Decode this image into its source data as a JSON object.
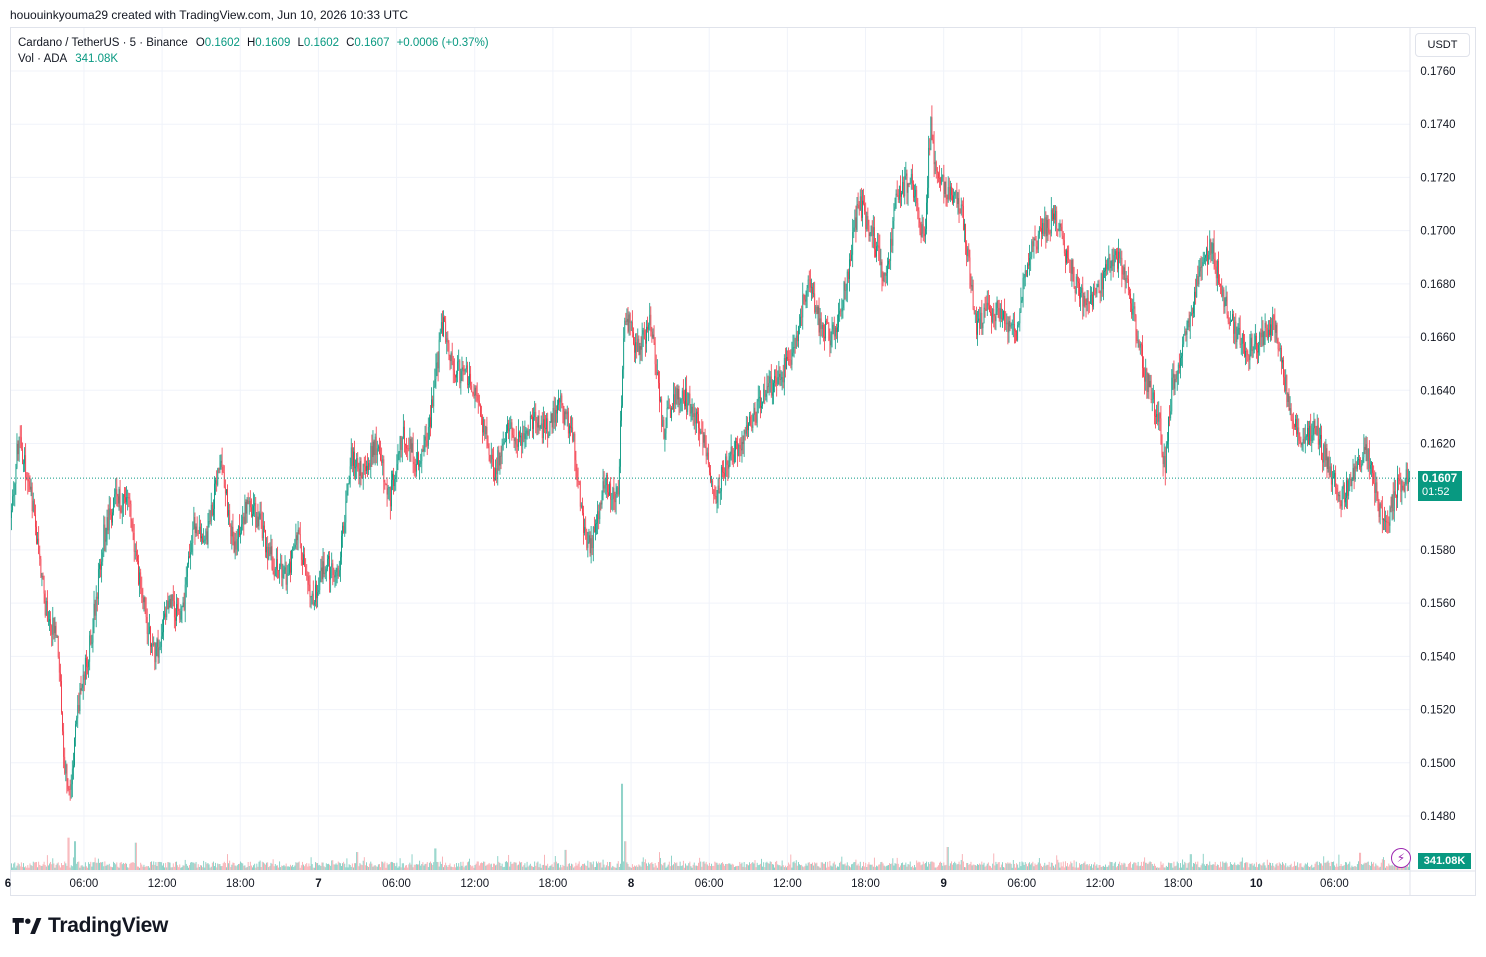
{
  "credit": "hououinkyouma29 created with TradingView.com, Jun 10, 2026 10:33 UTC",
  "legend": {
    "symbol": "Cardano / TetherUS · 5 · Binance",
    "open_label": "O",
    "open": "0.1602",
    "high_label": "H",
    "high": "0.1609",
    "low_label": "L",
    "low": "0.1602",
    "close_label": "C",
    "close": "0.1607",
    "change": "+0.0006 (+0.37%)",
    "vol_label": "Vol · ADA",
    "vol_value": "341.08K"
  },
  "currency": "USDT",
  "last_price_tag": {
    "price": "0.1607",
    "countdown": "01:52"
  },
  "volume_tag": "341.08K",
  "brand": {
    "name": "TradingView",
    "icon": "tradingview-logo-icon"
  },
  "colors": {
    "up": "#089981",
    "down": "#f23645",
    "vol_up": "#7fccc0",
    "vol_down": "#f7a9ae",
    "grid": "#f0f3fa"
  },
  "chart_data": {
    "type": "candlestick",
    "symbol": "Cardano / TetherUS",
    "interval": "5",
    "exchange": "Binance",
    "ylim": [
      0.1468,
      0.177
    ],
    "y_ticks": [
      "0.1760",
      "0.1740",
      "0.1720",
      "0.1700",
      "0.1680",
      "0.1660",
      "0.1640",
      "0.1620",
      "0.1580",
      "0.1560",
      "0.1540",
      "0.1520",
      "0.1500",
      "0.1480"
    ],
    "x_ticks": [
      "6",
      "06:00",
      "12:00",
      "18:00",
      "7",
      "06:00",
      "12:00",
      "18:00",
      "8",
      "06:00",
      "12:00",
      "18:00",
      "9",
      "06:00",
      "12:00",
      "18:00",
      "10",
      "06:00"
    ],
    "x_tick_hours": [
      0,
      6,
      12,
      18,
      24,
      30,
      36,
      42,
      48,
      54,
      60,
      66,
      72,
      78,
      84,
      90,
      96,
      102
    ],
    "hours_visible": [
      0.4,
      107.8
    ],
    "grid": true,
    "last_price": 0.1607,
    "price_path": [
      [
        0.4,
        0.1592
      ],
      [
        1.0,
        0.1623
      ],
      [
        2.0,
        0.16
      ],
      [
        3.0,
        0.156
      ],
      [
        4.0,
        0.1545
      ],
      [
        4.5,
        0.15
      ],
      [
        5.0,
        0.1487
      ],
      [
        5.5,
        0.152
      ],
      [
        6.5,
        0.1545
      ],
      [
        7.5,
        0.1585
      ],
      [
        8.5,
        0.16
      ],
      [
        9.5,
        0.1595
      ],
      [
        10.5,
        0.156
      ],
      [
        11.5,
        0.154
      ],
      [
        12.5,
        0.156
      ],
      [
        13.5,
        0.1555
      ],
      [
        14.5,
        0.159
      ],
      [
        15.5,
        0.1585
      ],
      [
        16.5,
        0.1615
      ],
      [
        17.5,
        0.158
      ],
      [
        18.5,
        0.1598
      ],
      [
        19.5,
        0.159
      ],
      [
        20.5,
        0.1575
      ],
      [
        21.5,
        0.157
      ],
      [
        22.5,
        0.1585
      ],
      [
        23.5,
        0.156
      ],
      [
        24.5,
        0.1575
      ],
      [
        25.5,
        0.157
      ],
      [
        26.5,
        0.1615
      ],
      [
        27.5,
        0.161
      ],
      [
        28.5,
        0.162
      ],
      [
        29.5,
        0.16
      ],
      [
        30.5,
        0.1625
      ],
      [
        31.5,
        0.1612
      ],
      [
        32.5,
        0.1625
      ],
      [
        33.5,
        0.1665
      ],
      [
        34.5,
        0.1648
      ],
      [
        35.5,
        0.1645
      ],
      [
        36.5,
        0.163
      ],
      [
        37.5,
        0.161
      ],
      [
        38.5,
        0.1625
      ],
      [
        39.5,
        0.162
      ],
      [
        40.5,
        0.163
      ],
      [
        41.5,
        0.1625
      ],
      [
        42.5,
        0.1635
      ],
      [
        43.5,
        0.1625
      ],
      [
        44.5,
        0.1585
      ],
      [
        45.0,
        0.1582
      ],
      [
        46.0,
        0.1605
      ],
      [
        47.0,
        0.16
      ],
      [
        47.5,
        0.167
      ],
      [
        48.5,
        0.1655
      ],
      [
        49.5,
        0.1665
      ],
      [
        50.5,
        0.1625
      ],
      [
        51.5,
        0.164
      ],
      [
        52.5,
        0.1635
      ],
      [
        53.5,
        0.1625
      ],
      [
        54.5,
        0.16
      ],
      [
        55.5,
        0.1615
      ],
      [
        56.5,
        0.162
      ],
      [
        57.5,
        0.163
      ],
      [
        58.5,
        0.164
      ],
      [
        59.5,
        0.1645
      ],
      [
        60.5,
        0.1655
      ],
      [
        61.5,
        0.168
      ],
      [
        62.5,
        0.1665
      ],
      [
        63.5,
        0.166
      ],
      [
        64.5,
        0.168
      ],
      [
        65.5,
        0.171
      ],
      [
        66.5,
        0.17
      ],
      [
        67.5,
        0.168
      ],
      [
        68.5,
        0.1715
      ],
      [
        69.5,
        0.172
      ],
      [
        70.5,
        0.1695
      ],
      [
        71.0,
        0.174
      ],
      [
        71.5,
        0.172
      ],
      [
        72.5,
        0.1715
      ],
      [
        73.5,
        0.1705
      ],
      [
        74.5,
        0.1665
      ],
      [
        75.5,
        0.167
      ],
      [
        76.5,
        0.167
      ],
      [
        77.5,
        0.166
      ],
      [
        78.5,
        0.169
      ],
      [
        79.5,
        0.17
      ],
      [
        80.5,
        0.1705
      ],
      [
        81.5,
        0.169
      ],
      [
        82.5,
        0.1675
      ],
      [
        83.5,
        0.1675
      ],
      [
        84.5,
        0.1685
      ],
      [
        85.5,
        0.169
      ],
      [
        86.5,
        0.167
      ],
      [
        87.5,
        0.1645
      ],
      [
        88.5,
        0.163
      ],
      [
        89.0,
        0.161
      ],
      [
        89.5,
        0.164
      ],
      [
        90.5,
        0.166
      ],
      [
        91.5,
        0.168
      ],
      [
        92.5,
        0.1695
      ],
      [
        93.5,
        0.1675
      ],
      [
        94.5,
        0.166
      ],
      [
        95.5,
        0.1655
      ],
      [
        96.5,
        0.166
      ],
      [
        97.5,
        0.1665
      ],
      [
        98.5,
        0.1635
      ],
      [
        99.5,
        0.162
      ],
      [
        100.5,
        0.1625
      ],
      [
        101.5,
        0.1612
      ],
      [
        102.5,
        0.16
      ],
      [
        103.5,
        0.1608
      ],
      [
        104.5,
        0.1618
      ],
      [
        105.5,
        0.1595
      ],
      [
        106.0,
        0.159
      ],
      [
        107.0,
        0.1605
      ],
      [
        107.8,
        0.1607
      ]
    ],
    "volume_axis_max": 160,
    "volume_spikes": [
      [
        4.8,
        45
      ],
      [
        5.3,
        40
      ],
      [
        10.0,
        38
      ],
      [
        27.0,
        25
      ],
      [
        33.0,
        30
      ],
      [
        43.0,
        28
      ],
      [
        47.3,
        120
      ],
      [
        47.6,
        40
      ],
      [
        72.3,
        32
      ],
      [
        91.0,
        22
      ],
      [
        104.0,
        24
      ]
    ]
  }
}
